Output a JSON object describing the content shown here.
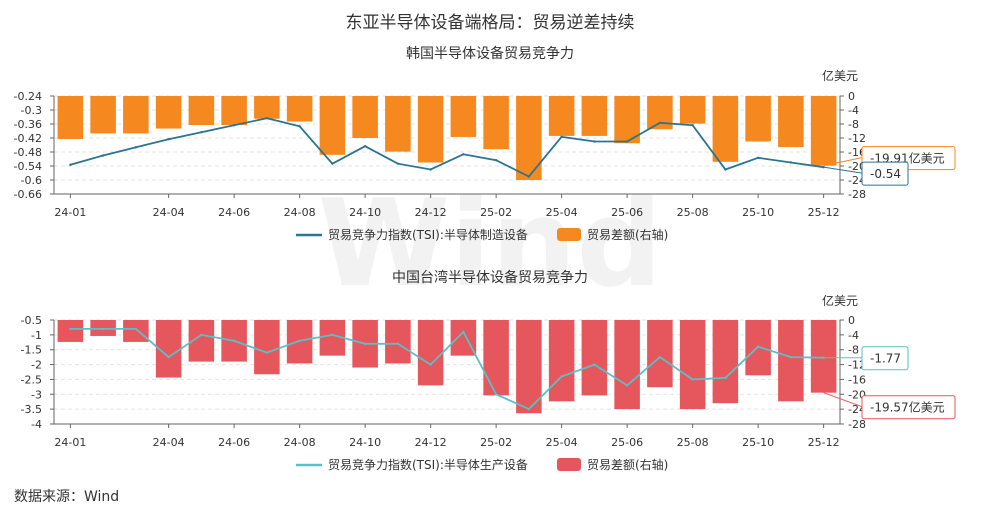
{
  "title": "东亚半导体设备端格局：贸易逆差持续",
  "source": "数据来源：Wind",
  "watermark": "Wind",
  "chart_data": [
    {
      "type": "bar+line",
      "title": "韩国半导体设备贸易竞争力",
      "x_tick_labels": [
        "24-01",
        "24-04",
        "24-06",
        "24-08",
        "24-10",
        "24-12",
        "25-02",
        "25-04",
        "25-06",
        "25-08",
        "25-10",
        "25-12"
      ],
      "x": [
        "24-01",
        "24-02",
        "24-03",
        "24-04",
        "24-05",
        "24-06",
        "24-07",
        "24-08",
        "24-09",
        "24-10",
        "24-11",
        "24-12",
        "25-01",
        "25-02",
        "25-03",
        "25-04",
        "25-05",
        "25-06",
        "25-07",
        "25-08",
        "25-09",
        "25-10",
        "25-11",
        "25-12"
      ],
      "left_axis": {
        "ticks": [
          "-0.24",
          "-0.3",
          "-0.36",
          "-0.42",
          "-0.48",
          "-0.54",
          "-0.6",
          "-0.66"
        ],
        "range": [
          -0.66,
          -0.24
        ]
      },
      "right_axis": {
        "unit": "亿美元",
        "ticks": [
          "0",
          "-4",
          "-8",
          "-12",
          "-16",
          "-20",
          "-24",
          "-28"
        ],
        "range": [
          -28,
          0
        ]
      },
      "line_series": {
        "name": "贸易竞争力指数(TSI):半导体制造设备",
        "color": "#2a7591",
        "values": [
          -0.535,
          -0.495,
          -0.46,
          -0.425,
          -0.395,
          -0.365,
          -0.335,
          -0.37,
          -0.53,
          -0.455,
          -0.53,
          -0.555,
          -0.49,
          -0.515,
          -0.585,
          -0.415,
          -0.435,
          -0.435,
          -0.355,
          -0.365,
          -0.555,
          -0.505,
          -0.525,
          -0.545
        ]
      },
      "bar_series": {
        "name": "贸易差额(右轴)",
        "color": "#f5891f",
        "values": [
          -12.3,
          -10.7,
          -10.7,
          -9.3,
          -8.3,
          -8.3,
          -6.5,
          -7.3,
          -16.8,
          -12.0,
          -15.9,
          -19.0,
          -11.7,
          -15.2,
          -24.0,
          -11.4,
          -11.4,
          -13.5,
          -9.5,
          -7.9,
          -18.8,
          -13.0,
          -14.6,
          -19.9
        ]
      },
      "callouts": {
        "bar": "-19.91亿美元",
        "line": "-0.54"
      }
    },
    {
      "type": "bar+line",
      "title": "中国台湾半导体设备贸易竞争力",
      "x_tick_labels": [
        "24-01",
        "24-04",
        "24-06",
        "24-08",
        "24-10",
        "24-12",
        "25-02",
        "25-04",
        "25-06",
        "25-08",
        "25-10",
        "25-12"
      ],
      "x": [
        "24-01",
        "24-02",
        "24-03",
        "24-04",
        "24-05",
        "24-06",
        "24-07",
        "24-08",
        "24-09",
        "24-10",
        "24-11",
        "24-12",
        "25-01",
        "25-02",
        "25-03",
        "25-04",
        "25-05",
        "25-06",
        "25-07",
        "25-08",
        "25-09",
        "25-10",
        "25-11",
        "25-12"
      ],
      "left_axis": {
        "ticks": [
          "-0.5",
          "-1",
          "-1.5",
          "-2",
          "-2.5",
          "-3",
          "-3.5",
          "-4"
        ],
        "range": [
          -4,
          -0.5
        ]
      },
      "right_axis": {
        "unit": "亿美元",
        "ticks": [
          "0",
          "-4",
          "-8",
          "-12",
          "-16",
          "-20",
          "-24",
          "-28"
        ],
        "range": [
          -28,
          0
        ]
      },
      "line_series": {
        "name": "贸易竞争力指数(TSI):半导体生产设备",
        "color": "#5bbfc6",
        "values": [
          -0.8,
          -0.8,
          -0.8,
          -1.75,
          -1.0,
          -1.2,
          -1.6,
          -1.2,
          -1.0,
          -1.3,
          -1.3,
          -2.0,
          -0.9,
          -3.0,
          -3.5,
          -2.4,
          -2.0,
          -2.7,
          -1.75,
          -2.5,
          -2.45,
          -1.4,
          -1.75,
          -1.77
        ]
      },
      "bar_series": {
        "name": "贸易差额(右轴)",
        "color": "#e5575c",
        "values": [
          -5.9,
          -4.3,
          -5.9,
          -15.5,
          -11.2,
          -11.2,
          -14.6,
          -11.7,
          -9.6,
          -12.8,
          -11.7,
          -17.6,
          -9.6,
          -20.3,
          -25.1,
          -21.9,
          -20.3,
          -24.0,
          -18.1,
          -24.0,
          -22.4,
          -14.9,
          -21.9,
          -19.57
        ]
      },
      "callouts": {
        "bar": "-19.57亿美元",
        "line": "-1.77"
      }
    }
  ]
}
